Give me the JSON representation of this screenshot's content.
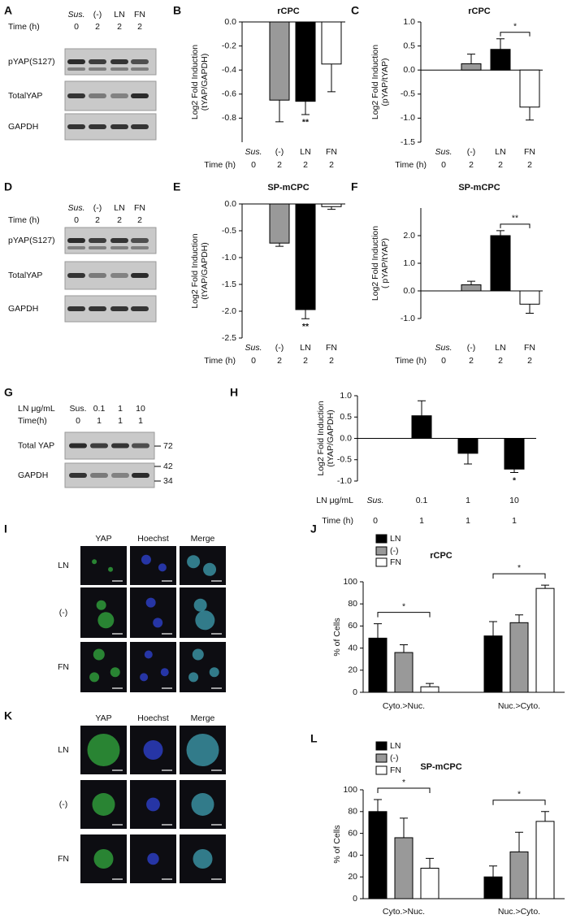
{
  "chart_data": [
    {
      "type": "bar",
      "panel": "B",
      "title": "rCPC",
      "ylabel": [
        "Log2 Fold Induction",
        "(tYAP/GAPDH)"
      ],
      "categories": [
        "Sus.",
        "(-)",
        "LN",
        "FN"
      ],
      "category_rows": [
        {
          "label": "Time (h)",
          "values": [
            0,
            2,
            2,
            2
          ]
        }
      ],
      "values": [
        null,
        -0.65,
        -0.66,
        -0.35
      ],
      "errors": [
        null,
        0.18,
        0.11,
        0.23
      ],
      "colors": [
        null,
        "#999999",
        "#000000",
        "#ffffff"
      ],
      "annotations": [
        null,
        null,
        "**",
        null
      ],
      "ylim": [
        -1.0,
        0
      ],
      "yticks": [
        {
          "value": 0,
          "label": "0.0"
        },
        -0.2,
        -0.4,
        -0.6,
        -0.8
      ]
    },
    {
      "type": "bar",
      "panel": "C",
      "title": "rCPC",
      "ylabel": [
        "Log2 Fold Induction",
        "(pYAP/tYAP)"
      ],
      "categories": [
        "Sus.",
        "(-)",
        "LN",
        "FN"
      ],
      "category_rows": [
        {
          "label": "Time (h)",
          "values": [
            0,
            2,
            2,
            2
          ]
        }
      ],
      "values": [
        null,
        0.13,
        0.43,
        -0.77
      ],
      "errors": [
        null,
        0.2,
        0.22,
        0.27
      ],
      "colors": [
        null,
        "#999999",
        "#000000",
        "#ffffff"
      ],
      "brackets": [
        null,
        null,
        "*",
        null
      ],
      "ylim": [
        -1.5,
        1.0
      ],
      "yticks": [
        -1.5,
        {
          "value": -1,
          "label": "-1.0"
        },
        -0.5,
        {
          "value": 0,
          "label": "0.0"
        },
        0.5,
        {
          "value": 1,
          "label": "1.0"
        }
      ]
    },
    {
      "type": "bar",
      "panel": "E",
      "title": "SP-mCPC",
      "ylabel": [
        "Log2 Fold Induction",
        "(tYAP/GAPDH)"
      ],
      "categories": [
        "Sus.",
        "(-)",
        "LN",
        "FN"
      ],
      "category_rows": [
        {
          "label": "Time (h)",
          "values": [
            0,
            2,
            2,
            2
          ]
        }
      ],
      "values": [
        null,
        -0.73,
        -1.97,
        -0.05
      ],
      "errors": [
        null,
        0.06,
        0.17,
        0.05
      ],
      "colors": [
        null,
        "#999999",
        "#000000",
        "#ffffff"
      ],
      "annotations": [
        null,
        null,
        "**",
        null
      ],
      "ylim": [
        -2.5,
        0
      ],
      "yticks": [
        {
          "value": 0,
          "label": "0.0"
        },
        -0.5,
        {
          "value": -1,
          "label": "-1.0"
        },
        -1.5,
        {
          "value": -2,
          "label": "-2.0"
        },
        -2.5
      ]
    },
    {
      "type": "bar",
      "panel": "F",
      "title": "SP-mCPC",
      "ylabel": [
        "Log2 Fold Induction",
        "( pYAP/tYAP)"
      ],
      "categories": [
        "Sus.",
        "(-)",
        "LN",
        "FN"
      ],
      "category_rows": [
        {
          "label": "Time (h)",
          "values": [
            0,
            2,
            2,
            2
          ]
        }
      ],
      "values": [
        null,
        0.22,
        2.0,
        -0.48
      ],
      "errors": [
        null,
        0.13,
        0.18,
        0.33
      ],
      "colors": [
        null,
        "#999999",
        "#000000",
        "#ffffff"
      ],
      "brackets": [
        null,
        null,
        "**",
        null
      ],
      "ylim": [
        -1.0,
        3.0
      ],
      "yticks": [
        {
          "value": -1,
          "label": "-1.0"
        },
        {
          "value": 0,
          "label": "0.0"
        },
        {
          "value": 1,
          "label": "1.0"
        },
        {
          "value": 2,
          "label": "2.0"
        }
      ]
    },
    {
      "type": "bar",
      "panel": "H",
      "ylabel": [
        "Log2 Fold Induction",
        "(tYAP/GAPDH)"
      ],
      "category_label": "LN μg/mL",
      "categories": [
        "Sus.",
        "0.1",
        "1",
        "10"
      ],
      "category_rows": [
        {
          "label": "Time (h)",
          "values": [
            0,
            1,
            1,
            1
          ]
        }
      ],
      "values": [
        null,
        0.53,
        -0.35,
        -0.72
      ],
      "errors": [
        null,
        0.35,
        0.25,
        0.08
      ],
      "colors": [
        null,
        "#000000",
        "#000000",
        "#000000"
      ],
      "annotations": [
        null,
        null,
        null,
        "*"
      ],
      "ylim": [
        -1.0,
        1.0
      ],
      "yticks": [
        {
          "value": -1,
          "label": "-1.0"
        },
        -0.5,
        {
          "value": 0,
          "label": "0.0"
        },
        0.5,
        {
          "value": 1,
          "label": "1.0"
        }
      ]
    },
    {
      "type": "bar",
      "panel": "J",
      "title": "rCPC",
      "ylabel": [
        "% of Cells"
      ],
      "categories": [
        "Cyto.>Nuc.",
        "Nuc.>Cyto."
      ],
      "series": [
        {
          "name": "LN",
          "color": "#000000",
          "values": [
            49,
            51
          ],
          "errors": [
            13,
            13
          ]
        },
        {
          "name": "(-)",
          "color": "#999999",
          "values": [
            36,
            63
          ],
          "errors": [
            7,
            7
          ]
        },
        {
          "name": "FN",
          "color": "#ffffff",
          "values": [
            5,
            94
          ],
          "errors": [
            3,
            3
          ]
        }
      ],
      "group_annotations": [
        "*",
        "*"
      ],
      "ylim": [
        0,
        100
      ],
      "yticks": [
        0,
        20,
        40,
        60,
        80,
        100
      ]
    },
    {
      "type": "bar",
      "panel": "L",
      "title": "SP-mCPC",
      "ylabel": [
        "% of Cells"
      ],
      "categories": [
        "Cyto.>Nuc.",
        "Nuc.>Cyto."
      ],
      "series": [
        {
          "name": "LN",
          "color": "#000000",
          "values": [
            80,
            20
          ],
          "errors": [
            11,
            10
          ]
        },
        {
          "name": "(-)",
          "color": "#999999",
          "values": [
            56,
            43
          ],
          "errors": [
            18,
            18
          ]
        },
        {
          "name": "FN",
          "color": "#ffffff",
          "values": [
            28,
            71
          ],
          "errors": [
            9,
            9
          ]
        }
      ],
      "group_annotations": [
        "*",
        "*"
      ],
      "ylim": [
        0,
        100
      ],
      "yticks": [
        0,
        20,
        40,
        60,
        80,
        100
      ]
    }
  ],
  "blots": [
    {
      "panel": "A",
      "header_rows": [
        {
          "values": [
            "Sus.",
            "(-)",
            "LN",
            "FN"
          ]
        },
        {
          "label": "Time (h)",
          "values": [
            0,
            2,
            2,
            2
          ]
        }
      ],
      "bands": [
        "pYAP(S127)",
        "TotalYAP",
        "GAPDH"
      ]
    },
    {
      "panel": "D",
      "header_rows": [
        {
          "values": [
            "Sus.",
            "(-)",
            "LN",
            "FN"
          ]
        },
        {
          "label": "Time (h)",
          "values": [
            0,
            2,
            2,
            2
          ]
        }
      ],
      "bands": [
        "pYAP(S127)",
        "TotalYAP",
        "GAPDH"
      ]
    },
    {
      "panel": "G",
      "header_rows": [
        {
          "label": "LN μg/mL",
          "values": [
            "Sus.",
            "0.1",
            "1",
            "10"
          ]
        },
        {
          "label": "Time(h)",
          "values": [
            0,
            1,
            1,
            1
          ]
        }
      ],
      "bands": [
        "Total YAP",
        "GAPDH"
      ],
      "markers": [
        72,
        42,
        34
      ]
    }
  ],
  "micrographs": [
    {
      "panel": "I",
      "columns": [
        "YAP",
        "Hoechst",
        "Merge"
      ],
      "rows": [
        "LN",
        "(-)",
        "FN"
      ]
    },
    {
      "panel": "K",
      "columns": [
        "YAP",
        "Hoechst",
        "Merge"
      ],
      "rows": [
        "LN",
        "(-)",
        "FN"
      ]
    }
  ]
}
